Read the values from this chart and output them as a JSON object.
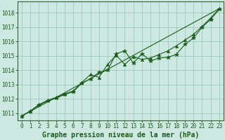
{
  "background_color": "#cce8e0",
  "plot_bg_color": "#cce8e0",
  "grid_color": "#99ccbb",
  "line_color": "#1a5c1a",
  "marker_color": "#1a5c1a",
  "xlabel": "Graphe pression niveau de la mer (hPa)",
  "xlabel_fontsize": 7.0,
  "ylabel_ticks": [
    1011,
    1012,
    1013,
    1014,
    1015,
    1016,
    1017,
    1018
  ],
  "xtick_labels": [
    "0",
    "1",
    "2",
    "3",
    "4",
    "5",
    "6",
    "7",
    "8",
    "9",
    "10",
    "11",
    "12",
    "13",
    "14",
    "15",
    "16",
    "17",
    "18",
    "19",
    "20",
    "21",
    "22",
    "23"
  ],
  "ylim": [
    1010.5,
    1018.8
  ],
  "xlim": [
    -0.5,
    23.5
  ],
  "series1_x": [
    0,
    1,
    2,
    3,
    4,
    5,
    6,
    7,
    8,
    9,
    10,
    11,
    12,
    13,
    14,
    15,
    16,
    17,
    18,
    19,
    20,
    21,
    22,
    23
  ],
  "series1_y": [
    1010.8,
    1011.15,
    1011.55,
    1011.85,
    1012.05,
    1012.3,
    1012.5,
    1013.1,
    1013.4,
    1013.85,
    1014.0,
    1015.15,
    1015.35,
    1014.5,
    1015.15,
    1014.65,
    1014.85,
    1014.9,
    1015.1,
    1015.8,
    1016.25,
    1017.0,
    1017.55,
    1018.25
  ],
  "series2_x": [
    0,
    1,
    2,
    3,
    4,
    5,
    6,
    7,
    8,
    9,
    10,
    11,
    12,
    13,
    14,
    15,
    16,
    17,
    18,
    19,
    20,
    21,
    22,
    23
  ],
  "series2_y": [
    1010.8,
    1011.15,
    1011.6,
    1011.9,
    1012.1,
    1012.35,
    1012.55,
    1013.15,
    1013.7,
    1013.5,
    1014.4,
    1015.05,
    1014.4,
    1014.95,
    1014.75,
    1014.85,
    1015.1,
    1015.35,
    1015.7,
    1016.1,
    1016.5,
    1017.05,
    1017.65,
    1018.3
  ],
  "series3_x": [
    0,
    23
  ],
  "series3_y": [
    1010.8,
    1018.3
  ],
  "tick_fontsize": 5.5,
  "tick_color": "#1a5c1a",
  "axis_color": "#1a5c1a",
  "border_color": "#336633"
}
